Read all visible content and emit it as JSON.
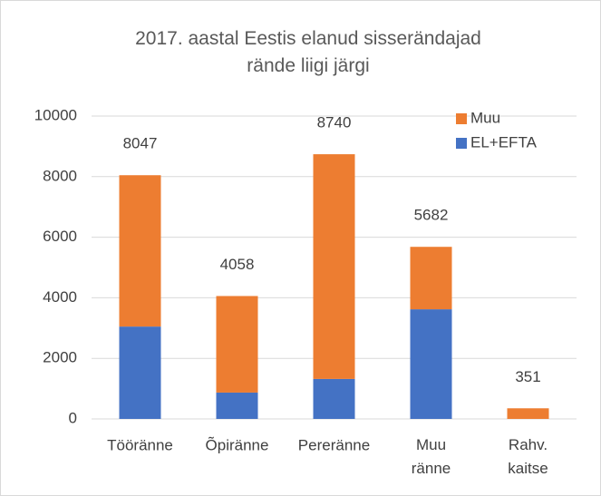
{
  "chart_data": {
    "type": "stacked_bar",
    "title": "2017. aastal Eestis elanud sisserändajad rände liigi järgi",
    "categories": [
      "Tööränne",
      "Õpiränne",
      "Pereränne",
      "Muu ränne",
      "Rahv. kaitse"
    ],
    "series": [
      {
        "name": "EL+EFTA",
        "color": "#4472c4",
        "values": [
          3050,
          870,
          1320,
          3620,
          0
        ]
      },
      {
        "name": "Muu",
        "color": "#ed7d31",
        "values": [
          4997,
          3188,
          7420,
          2062,
          351
        ]
      }
    ],
    "totals": [
      8047,
      4058,
      8740,
      5682,
      351
    ],
    "ylim": [
      0,
      10000
    ],
    "yticks": [
      0,
      2000,
      4000,
      6000,
      8000,
      10000
    ],
    "grid": true,
    "legend": "top-right"
  }
}
